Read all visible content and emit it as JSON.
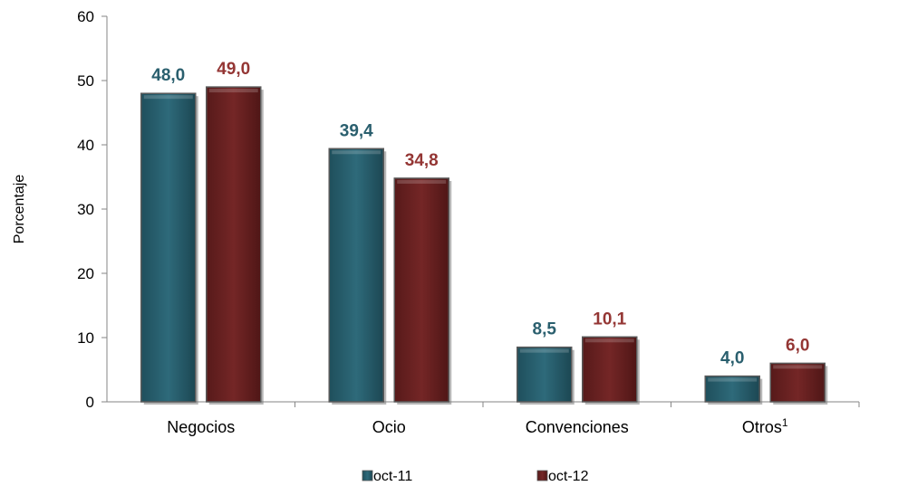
{
  "chart_data": {
    "type": "bar",
    "ylabel": "Porcentaje",
    "ylim": [
      0,
      60
    ],
    "yticks": [
      "0",
      "10",
      "20",
      "30",
      "40",
      "50",
      "60"
    ],
    "categories": [
      "Negocios",
      "Ocio",
      "Convenciones",
      "Otros"
    ],
    "category_superscripts": [
      "",
      "",
      "",
      "1"
    ],
    "series": [
      {
        "name": "oct-11",
        "values": [
          48.0,
          39.4,
          8.5,
          4.0
        ],
        "labels": [
          "48,0",
          "39,4",
          "8,5",
          "4,0"
        ],
        "color": "#2a6070",
        "label_color": "#2a5f6e"
      },
      {
        "name": "oct-12",
        "values": [
          49.0,
          34.8,
          10.1,
          6.0
        ],
        "labels": [
          "49,0",
          "34,8",
          "10,1",
          "6,0"
        ],
        "color": "#6b2222",
        "label_color": "#943634"
      }
    ],
    "legend_position": "bottom"
  }
}
